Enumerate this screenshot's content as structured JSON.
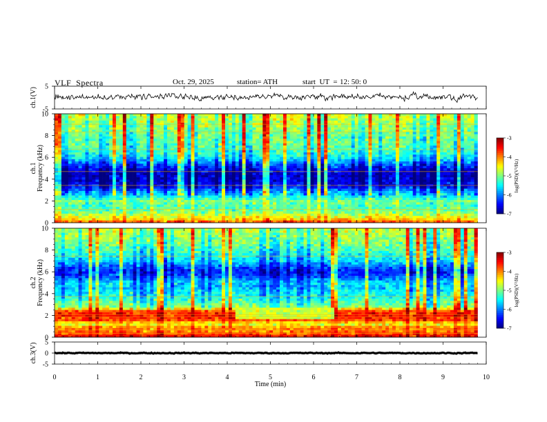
{
  "header": {
    "title": "VLF  Spectra",
    "date": "Oct. 29, 2025",
    "station": "station= ATH",
    "start_ut_label": "start  UT  =",
    "start_ut_value": "12: 50: 0"
  },
  "chart_data": [
    {
      "type": "line",
      "id": "ch1-waveform",
      "ylabel": "ch.1(V)",
      "ylim": [
        -5,
        5
      ],
      "yticks": [
        "5",
        "-5"
      ],
      "xlim": [
        0,
        10
      ],
      "x_end": 9.8,
      "mean_value": 0.3,
      "amplitude_range": [
        -2.8,
        2.8
      ]
    },
    {
      "type": "heatmap",
      "id": "ch1-spectrogram",
      "ylabel_line1": "ch.1",
      "ylabel_line2": "Frequency  (kHz)",
      "ylim": [
        0,
        10
      ],
      "yticks": [
        "0",
        "2",
        "4",
        "6",
        "8",
        "10"
      ],
      "xlim": [
        0,
        10
      ],
      "x_end": 9.8,
      "colorbar_label": "log(PSD)(V²/Hz)",
      "colorbar_range": [
        -7,
        -3
      ],
      "colorbar_ticks": [
        "-3",
        "-4",
        "-5",
        "-6",
        "-7"
      ],
      "profile_log_psd": [
        [
          0.0,
          -3.6
        ],
        [
          0.3,
          -4.3
        ],
        [
          0.6,
          -4.6
        ],
        [
          1.0,
          -5.0
        ],
        [
          1.5,
          -5.2
        ],
        [
          2.0,
          -5.0
        ],
        [
          2.3,
          -5.4
        ],
        [
          2.8,
          -5.8
        ],
        [
          3.3,
          -6.4
        ],
        [
          3.8,
          -6.6
        ],
        [
          4.3,
          -6.7
        ],
        [
          4.8,
          -6.6
        ],
        [
          5.3,
          -6.2
        ],
        [
          5.8,
          -5.6
        ],
        [
          6.3,
          -5.3
        ],
        [
          7.0,
          -5.1
        ],
        [
          8.0,
          -5.0
        ],
        [
          9.0,
          -4.8
        ],
        [
          10.0,
          -4.6
        ]
      ]
    },
    {
      "type": "heatmap",
      "id": "ch2-spectrogram",
      "ylabel_line1": "ch.2",
      "ylabel_line2": "Frequency  (kHz)",
      "ylim": [
        0,
        10
      ],
      "yticks": [
        "0",
        "2",
        "4",
        "6",
        "8",
        "10"
      ],
      "xlim": [
        0,
        10
      ],
      "x_end": 9.8,
      "colorbar_label": "log(PSD)(V²/Hz)",
      "colorbar_range": [
        -7,
        -3
      ],
      "colorbar_ticks": [
        "-3",
        "-4",
        "-5",
        "-6",
        "-7"
      ],
      "profile_log_psd": [
        [
          0.0,
          -3.4
        ],
        [
          0.5,
          -3.9
        ],
        [
          0.9,
          -4.0
        ],
        [
          1.2,
          -4.6
        ],
        [
          1.6,
          -3.7
        ],
        [
          2.0,
          -3.5
        ],
        [
          2.4,
          -3.8
        ],
        [
          2.8,
          -4.9
        ],
        [
          3.2,
          -5.1
        ],
        [
          3.5,
          -5.3
        ],
        [
          4.0,
          -5.5
        ],
        [
          4.6,
          -5.7
        ],
        [
          5.0,
          -5.6
        ],
        [
          5.5,
          -6.1
        ],
        [
          6.0,
          -6.4
        ],
        [
          6.5,
          -6.1
        ],
        [
          7.0,
          -5.6
        ],
        [
          8.0,
          -5.2
        ],
        [
          9.0,
          -4.9
        ],
        [
          10.0,
          -4.7
        ]
      ],
      "quiet_interval_min": [
        4.15,
        6.45
      ],
      "quiet_band_khz": [
        1.6,
        2.8
      ],
      "quiet_log_psd": -4.7
    },
    {
      "type": "line",
      "id": "ch3-waveform",
      "ylabel": "ch.3(V)",
      "ylim": [
        -5,
        5
      ],
      "yticks": [
        "5",
        "0",
        "-5"
      ],
      "xlim": [
        0,
        10
      ],
      "x_end": 9.8,
      "mean_value": 0.0,
      "amplitude_range": [
        -0.4,
        0.4
      ]
    }
  ],
  "time_axis": {
    "label": "Time  (min)",
    "ticks": [
      "0",
      "1",
      "2",
      "3",
      "4",
      "5",
      "6",
      "7",
      "8",
      "9",
      "10"
    ]
  }
}
